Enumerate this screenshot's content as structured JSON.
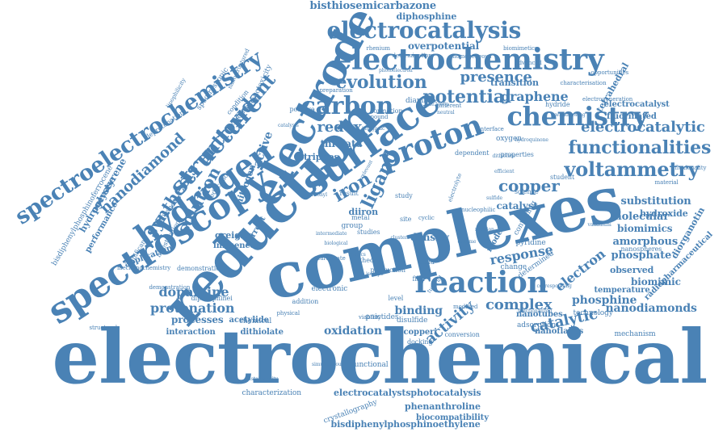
{
  "color": "#4a82b5",
  "words": [
    {
      "text": "electrochemical"
    },
    {
      "text": "complexes"
    },
    {
      "text": "reduction"
    },
    {
      "text": "electrode"
    },
    {
      "text": "surface"
    },
    {
      "text": "spectroscopy"
    },
    {
      "text": "electrochemistry"
    },
    {
      "text": "spectroelectrochemistry"
    },
    {
      "text": "hydrogen"
    },
    {
      "text": "structure"
    },
    {
      "text": "reaction"
    },
    {
      "text": "proton"
    },
    {
      "text": "electrocatalysis"
    },
    {
      "text": "chemistry"
    },
    {
      "text": "carbon"
    },
    {
      "text": "voltammetry"
    },
    {
      "text": "functionalities"
    },
    {
      "text": "electrocatalytic"
    },
    {
      "text": "evolution"
    },
    {
      "text": "potential"
    },
    {
      "text": "presence"
    },
    {
      "text": "graphene"
    },
    {
      "text": "antioxidant"
    },
    {
      "text": "nanodiamond"
    },
    {
      "text": "synthesis"
    },
    {
      "text": "solution"
    },
    {
      "text": "copper"
    },
    {
      "text": "iron"
    },
    {
      "text": "ligand"
    },
    {
      "text": "redox"
    },
    {
      "text": "protonation"
    },
    {
      "text": "dopamine"
    },
    {
      "text": "complex"
    },
    {
      "text": "catalytic"
    },
    {
      "text": "activity"
    },
    {
      "text": "oxidation"
    },
    {
      "text": "binding"
    },
    {
      "text": "response"
    },
    {
      "text": "electron"
    },
    {
      "text": "nanodiamonds"
    },
    {
      "text": "phosphine"
    },
    {
      "text": "molecular"
    },
    {
      "text": "substitution"
    },
    {
      "text": "amorphous"
    },
    {
      "text": "phosphate"
    },
    {
      "text": "biomimics"
    },
    {
      "text": "biomimic"
    },
    {
      "text": "hydroxide"
    },
    {
      "text": "bisthiosemicarbazone"
    },
    {
      "text": "diphosphine"
    },
    {
      "text": "overpotential"
    },
    {
      "text": "electrocatalyst"
    },
    {
      "text": "fluorinated"
    },
    {
      "text": "tetrahedral"
    },
    {
      "text": "transition"
    },
    {
      "text": "thiolate"
    },
    {
      "text": "triphos"
    },
    {
      "text": "diiron"
    },
    {
      "text": "catalyst"
    },
    {
      "text": "density"
    },
    {
      "text": "greigite"
    },
    {
      "text": "influence"
    },
    {
      "text": "current"
    },
    {
      "text": "active"
    },
    {
      "text": "nitrogen"
    },
    {
      "text": "polystyrene"
    },
    {
      "text": "hydrogenase"
    },
    {
      "text": "performance"
    },
    {
      "text": "bisdiphenylphosphinoferrocene"
    },
    {
      "text": "application"
    },
    {
      "text": "processes"
    },
    {
      "text": "interaction"
    },
    {
      "text": "dithiolate"
    },
    {
      "text": "acetylide"
    },
    {
      "text": "chemical"
    },
    {
      "text": "copperi"
    },
    {
      "text": "disulfide"
    },
    {
      "text": "observed"
    },
    {
      "text": "temperature"
    },
    {
      "text": "diorganotin"
    },
    {
      "text": "radiopharmaceutical"
    },
    {
      "text": "nanoflakes"
    },
    {
      "text": "mechanism"
    },
    {
      "text": "nanotubes"
    },
    {
      "text": "adsorption"
    },
    {
      "text": "technology"
    },
    {
      "text": "electrocatalystsphotocatalysis"
    },
    {
      "text": "characterization"
    },
    {
      "text": "phenanthroline"
    },
    {
      "text": "biocompatibility"
    },
    {
      "text": "crystallography"
    },
    {
      "text": "bisdiphenylphosphinoethylene"
    },
    {
      "text": "functional"
    },
    {
      "text": "change"
    },
    {
      "text": "determined"
    },
    {
      "text": "pyridine"
    },
    {
      "text": "model"
    },
    {
      "text": "science"
    },
    {
      "text": "student"
    },
    {
      "text": "nanospheres"
    },
    {
      "text": "spectroscopic"
    },
    {
      "text": "cytotoxicity"
    },
    {
      "text": "deprotonation"
    },
    {
      "text": "experience"
    },
    {
      "text": "condition"
    },
    {
      "text": "diamine"
    },
    {
      "text": "formation"
    },
    {
      "text": "compound"
    },
    {
      "text": "rhenium"
    },
    {
      "text": "biomimetics"
    },
    {
      "text": "demonstration"
    },
    {
      "text": "diphosphinei"
    },
    {
      "text": "electronic"
    },
    {
      "text": "addition"
    },
    {
      "text": "pnictides"
    },
    {
      "text": "docking"
    },
    {
      "text": "conversion"
    },
    {
      "text": "production"
    },
    {
      "text": "studies"
    },
    {
      "text": "group"
    },
    {
      "text": "metal"
    },
    {
      "text": "theory"
    },
    {
      "text": "bond"
    },
    {
      "text": "site"
    },
    {
      "text": "film"
    },
    {
      "text": "study"
    },
    {
      "text": "result"
    },
    {
      "text": "level"
    },
    {
      "text": "viability"
    },
    {
      "text": "modified"
    },
    {
      "text": "containing"
    },
    {
      "text": "oxygen"
    },
    {
      "text": "hydride"
    },
    {
      "text": "properties"
    },
    {
      "text": "dependent"
    },
    {
      "text": "positive"
    },
    {
      "text": "different"
    },
    {
      "text": "interface"
    },
    {
      "text": "structural"
    },
    {
      "text": "mechanochemistry"
    },
    {
      "text": "nanosheets"
    },
    {
      "text": "significant"
    },
    {
      "text": "investigation"
    },
    {
      "text": "education"
    },
    {
      "text": "material"
    },
    {
      "text": "fluxionality"
    },
    {
      "text": "electrogeneration"
    },
    {
      "text": "opportunities"
    },
    {
      "text": "characterisation"
    },
    {
      "text": "determination"
    },
    {
      "text": "demonstration"
    },
    {
      "text": "nanostructured"
    },
    {
      "text": "lipophilicity"
    },
    {
      "text": "simultaneous"
    },
    {
      "text": "sustainability"
    },
    {
      "text": "corresponding"
    },
    {
      "text": "functionalized"
    },
    {
      "text": "advanced"
    },
    {
      "text": "homogeneous"
    },
    {
      "text": "preparation"
    },
    {
      "text": "photoelectron"
    },
    {
      "text": "hydroquinone"
    },
    {
      "text": "efficient"
    },
    {
      "text": "vanadium"
    },
    {
      "text": "withdrawing"
    },
    {
      "text": "dithiolato"
    },
    {
      "text": "relevant"
    },
    {
      "text": "cluster"
    },
    {
      "text": "neutral"
    },
    {
      "text": "electrolyte"
    },
    {
      "text": "tutorial"
    },
    {
      "text": "physical"
    },
    {
      "text": "carbonate"
    },
    {
      "text": "nucleophilic"
    },
    {
      "text": "enzyme"
    },
    {
      "text": "mimics"
    },
    {
      "text": "sulfide"
    },
    {
      "text": "cyclic"
    },
    {
      "text": "rotation"
    },
    {
      "text": "catalysis"
    },
    {
      "text": "inorganic"
    },
    {
      "text": "fe2co6p"
    },
    {
      "text": "carbonyl"
    },
    {
      "text": "biological"
    },
    {
      "text": "isotope"
    },
    {
      "text": "intermediate"
    },
    {
      "text": "recovery"
    },
    {
      "text": "dinuclear"
    }
  ]
}
